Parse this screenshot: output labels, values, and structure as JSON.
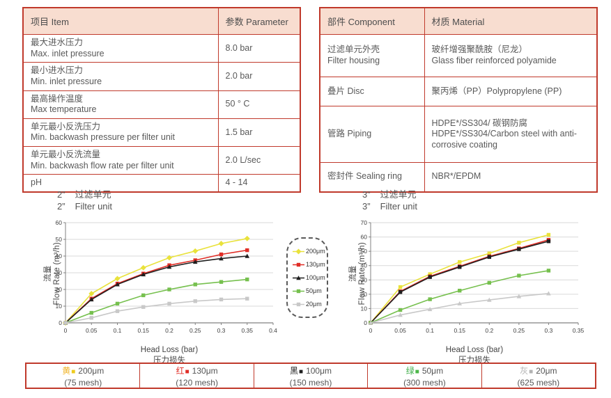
{
  "colors": {
    "table_border": "#c0392b",
    "header_bg": "#f8ddd0",
    "body_text": "#595959",
    "gridline": "#d9d9d9",
    "axis": "#808080"
  },
  "spec_table": {
    "headers": [
      "项目 Item",
      "参数 Parameter"
    ],
    "rows": [
      {
        "item_lines": [
          "最大进水压力",
          "Max. inlet pressure"
        ],
        "parameter": "8.0 bar"
      },
      {
        "item_lines": [
          "最小进水压力",
          "Min. inlet pressure"
        ],
        "parameter": "2.0 bar"
      },
      {
        "item_lines": [
          "最高操作温度",
          "Max temperature"
        ],
        "parameter": "50 ° C"
      },
      {
        "item_lines": [
          "单元最小反洗压力",
          "Min. backwash pressure per filter unit"
        ],
        "parameter": "1.5 bar"
      },
      {
        "item_lines": [
          "单元最小反洗流量",
          "Min. backwash flow rate per filter unit"
        ],
        "parameter": "2.0 L/sec"
      },
      {
        "item_lines": [
          "pH"
        ],
        "parameter": "4 - 14"
      }
    ]
  },
  "material_table": {
    "headers": [
      "部件 Component",
      "材质 Material"
    ],
    "rows": [
      {
        "component_lines": [
          "过滤单元外壳",
          "Filter housing"
        ],
        "material_lines": [
          "玻纤增强聚酰胺（尼龙）",
          "Glass fiber reinforced polyamide"
        ]
      },
      {
        "component_lines": [
          "叠片 Disc"
        ],
        "material_lines": [
          "聚丙烯（PP）Polypropylene (PP)"
        ]
      },
      {
        "component_lines": [
          "管路 Piping"
        ],
        "material_lines": [
          "HDPE*/SS304/ 碳钢防腐",
          "HDPE*/SS304/Carbon steel with anti-corrosive coating"
        ]
      },
      {
        "component_lines": [
          "密封件 Sealing ring"
        ],
        "material_lines": [
          "NBR*/EPDM"
        ]
      }
    ]
  },
  "charts": [
    {
      "title_prefix": "2”",
      "title_zh": "过滤单元",
      "title_en": "Filter unit",
      "ylabel_zh": "流量",
      "ylabel_en": "Flow Rate (m³/h)",
      "xlabel_en": "Head Loss (bar)",
      "xlabel_zh": "压力损失"
    },
    {
      "title_prefix": "3”",
      "title_zh": "过滤单元",
      "title_en": "Filter unit",
      "ylabel_zh": "流量",
      "ylabel_en": "Flow Rate (m³/h)",
      "xlabel_en": "Head Loss (bar)",
      "xlabel_zh": "压力损失"
    }
  ],
  "chart_data": [
    {
      "type": "line",
      "title": "2” 过滤单元 / 2” Filter unit",
      "xlabel": "Head Loss (bar) 压力损失",
      "ylabel": "流量 Flow Rate (m³/h)",
      "xlim": [
        0,
        0.4
      ],
      "ylim": [
        0,
        60
      ],
      "xticks": [
        0,
        0.05,
        0.1,
        0.15,
        0.2,
        0.25,
        0.3,
        0.35,
        0.4
      ],
      "yticks": [
        0,
        10,
        20,
        30,
        40,
        50,
        60
      ],
      "grid": "horizontal",
      "legend_position": "right-outside",
      "x": [
        0,
        0.05,
        0.1,
        0.15,
        0.2,
        0.25,
        0.3,
        0.35
      ],
      "series": [
        {
          "name": "200μm",
          "color": "#e9e23b",
          "marker": "diamond",
          "values": [
            0,
            17.5,
            26.5,
            33,
            39,
            43,
            47.5,
            50.5
          ]
        },
        {
          "name": "130μm",
          "color": "#e02d26",
          "marker": "square",
          "values": [
            0,
            14.5,
            23.5,
            29.5,
            34.5,
            37.5,
            41,
            43.5
          ]
        },
        {
          "name": "100μm",
          "color": "#1f1f1f",
          "marker": "triangle",
          "values": [
            0,
            14,
            23,
            29,
            33.5,
            36.5,
            38.5,
            40
          ]
        },
        {
          "name": "50μm",
          "color": "#76c04e",
          "marker": "square",
          "values": [
            0,
            6,
            11.5,
            16.5,
            20,
            23,
            24.5,
            26
          ]
        },
        {
          "name": "20μm",
          "color": "#c8c8c8",
          "marker": "square",
          "values": [
            0,
            3,
            7,
            9.5,
            11.5,
            13,
            14,
            14.5
          ]
        }
      ]
    },
    {
      "type": "line",
      "title": "3” 过滤单元 / 3” Filter unit",
      "xlabel": "Head Loss (bar) 压力损失",
      "ylabel": "流量 Flow Rate (m³/h)",
      "xlim": [
        0,
        0.35
      ],
      "ylim": [
        0,
        70
      ],
      "xticks": [
        0,
        0.05,
        0.1,
        0.15,
        0.2,
        0.25,
        0.3,
        0.35
      ],
      "yticks": [
        0,
        10,
        20,
        30,
        40,
        50,
        60,
        70
      ],
      "grid": "horizontal",
      "x": [
        0,
        0.05,
        0.1,
        0.15,
        0.2,
        0.25,
        0.3
      ],
      "series": [
        {
          "name": "200μm",
          "color": "#e9e23b",
          "marker": "square",
          "values": [
            0,
            25,
            34,
            42.5,
            48.5,
            56,
            61.5
          ]
        },
        {
          "name": "130μm",
          "color": "#e02d26",
          "marker": "square",
          "values": [
            0,
            22,
            32.5,
            39.5,
            46.5,
            52,
            58
          ]
        },
        {
          "name": "100μm",
          "color": "#1f1f1f",
          "marker": "square",
          "values": [
            0,
            21.5,
            32,
            39,
            46,
            51.5,
            57
          ]
        },
        {
          "name": "50μm",
          "color": "#76c04e",
          "marker": "square",
          "values": [
            0,
            9,
            16.5,
            22.5,
            28,
            33,
            36.5
          ]
        },
        {
          "name": "20μm",
          "color": "#c8c8c8",
          "marker": "triangle",
          "values": [
            0,
            5.5,
            9.5,
            13.5,
            16,
            18.5,
            20.5
          ]
        }
      ]
    }
  ],
  "legend": [
    {
      "label": "200μm",
      "color": "#e9e23b",
      "marker": "diamond"
    },
    {
      "label": "130μm",
      "color": "#e02d26",
      "marker": "square"
    },
    {
      "label": "100μm",
      "color": "#1f1f1f",
      "marker": "triangle"
    },
    {
      "label": "50μm",
      "color": "#76c04e",
      "marker": "square"
    },
    {
      "label": "20μm",
      "color": "#c8c8c8",
      "marker": "square"
    }
  ],
  "mesh_strip": [
    {
      "char": "黄",
      "char_color": "#f0b429",
      "square_color": "#eecb1e",
      "size": "200μm",
      "mesh": "(75 mesh)"
    },
    {
      "char": "红",
      "char_color": "#e02d26",
      "square_color": "#e02d26",
      "size": "130μm",
      "mesh": "(120 mesh)"
    },
    {
      "char": "黑",
      "char_color": "#1f1f1f",
      "square_color": "#1f1f1f",
      "size": "100μm",
      "mesh": "(150 mesh)"
    },
    {
      "char": "绿",
      "char_color": "#3fae49",
      "square_color": "#4cb748",
      "size": "50μm",
      "mesh": "(300 mesh)"
    },
    {
      "char": "灰",
      "char_color": "#b3b3b3",
      "square_color": "#b3b3b3",
      "size": "20μm",
      "mesh": "(625 mesh)"
    }
  ]
}
